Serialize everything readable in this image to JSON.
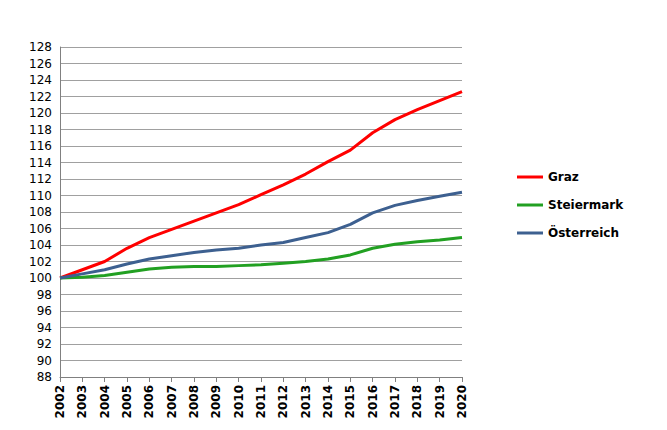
{
  "chart_data": {
    "type": "line",
    "categories": [
      "2002",
      "2003",
      "2004",
      "2005",
      "2006",
      "2007",
      "2008",
      "2009",
      "2010",
      "2011",
      "2012",
      "2013",
      "2014",
      "2015",
      "2016",
      "2017",
      "2018",
      "2019",
      "2020"
    ],
    "series": [
      {
        "name": "Graz",
        "color": "#ff0000",
        "values": [
          100,
          101,
          102,
          103.6,
          104.9,
          105.9,
          106.9,
          107.9,
          108.9,
          110.1,
          111.3,
          112.6,
          114.1,
          115.5,
          117.6,
          119.2,
          120.4,
          121.5,
          122.6
        ]
      },
      {
        "name": "Steiermark",
        "color": "#22a022",
        "values": [
          100,
          100.1,
          100.3,
          100.7,
          101.1,
          101.3,
          101.4,
          101.4,
          101.5,
          101.6,
          101.8,
          102.0,
          102.3,
          102.8,
          103.6,
          104.1,
          104.4,
          104.6,
          104.9
        ]
      },
      {
        "name": "Österreich",
        "color": "#3d6090",
        "values": [
          100,
          100.5,
          101.0,
          101.7,
          102.3,
          102.7,
          103.1,
          103.4,
          103.6,
          104.0,
          104.3,
          104.9,
          105.5,
          106.5,
          107.9,
          108.8,
          109.4,
          109.9,
          110.4
        ]
      }
    ],
    "ylim": [
      88,
      128
    ],
    "yticks": [
      88,
      90,
      92,
      94,
      96,
      98,
      100,
      102,
      104,
      106,
      108,
      110,
      112,
      114,
      116,
      118,
      120,
      122,
      124,
      126,
      128
    ],
    "grid": true,
    "legend": "right"
  }
}
